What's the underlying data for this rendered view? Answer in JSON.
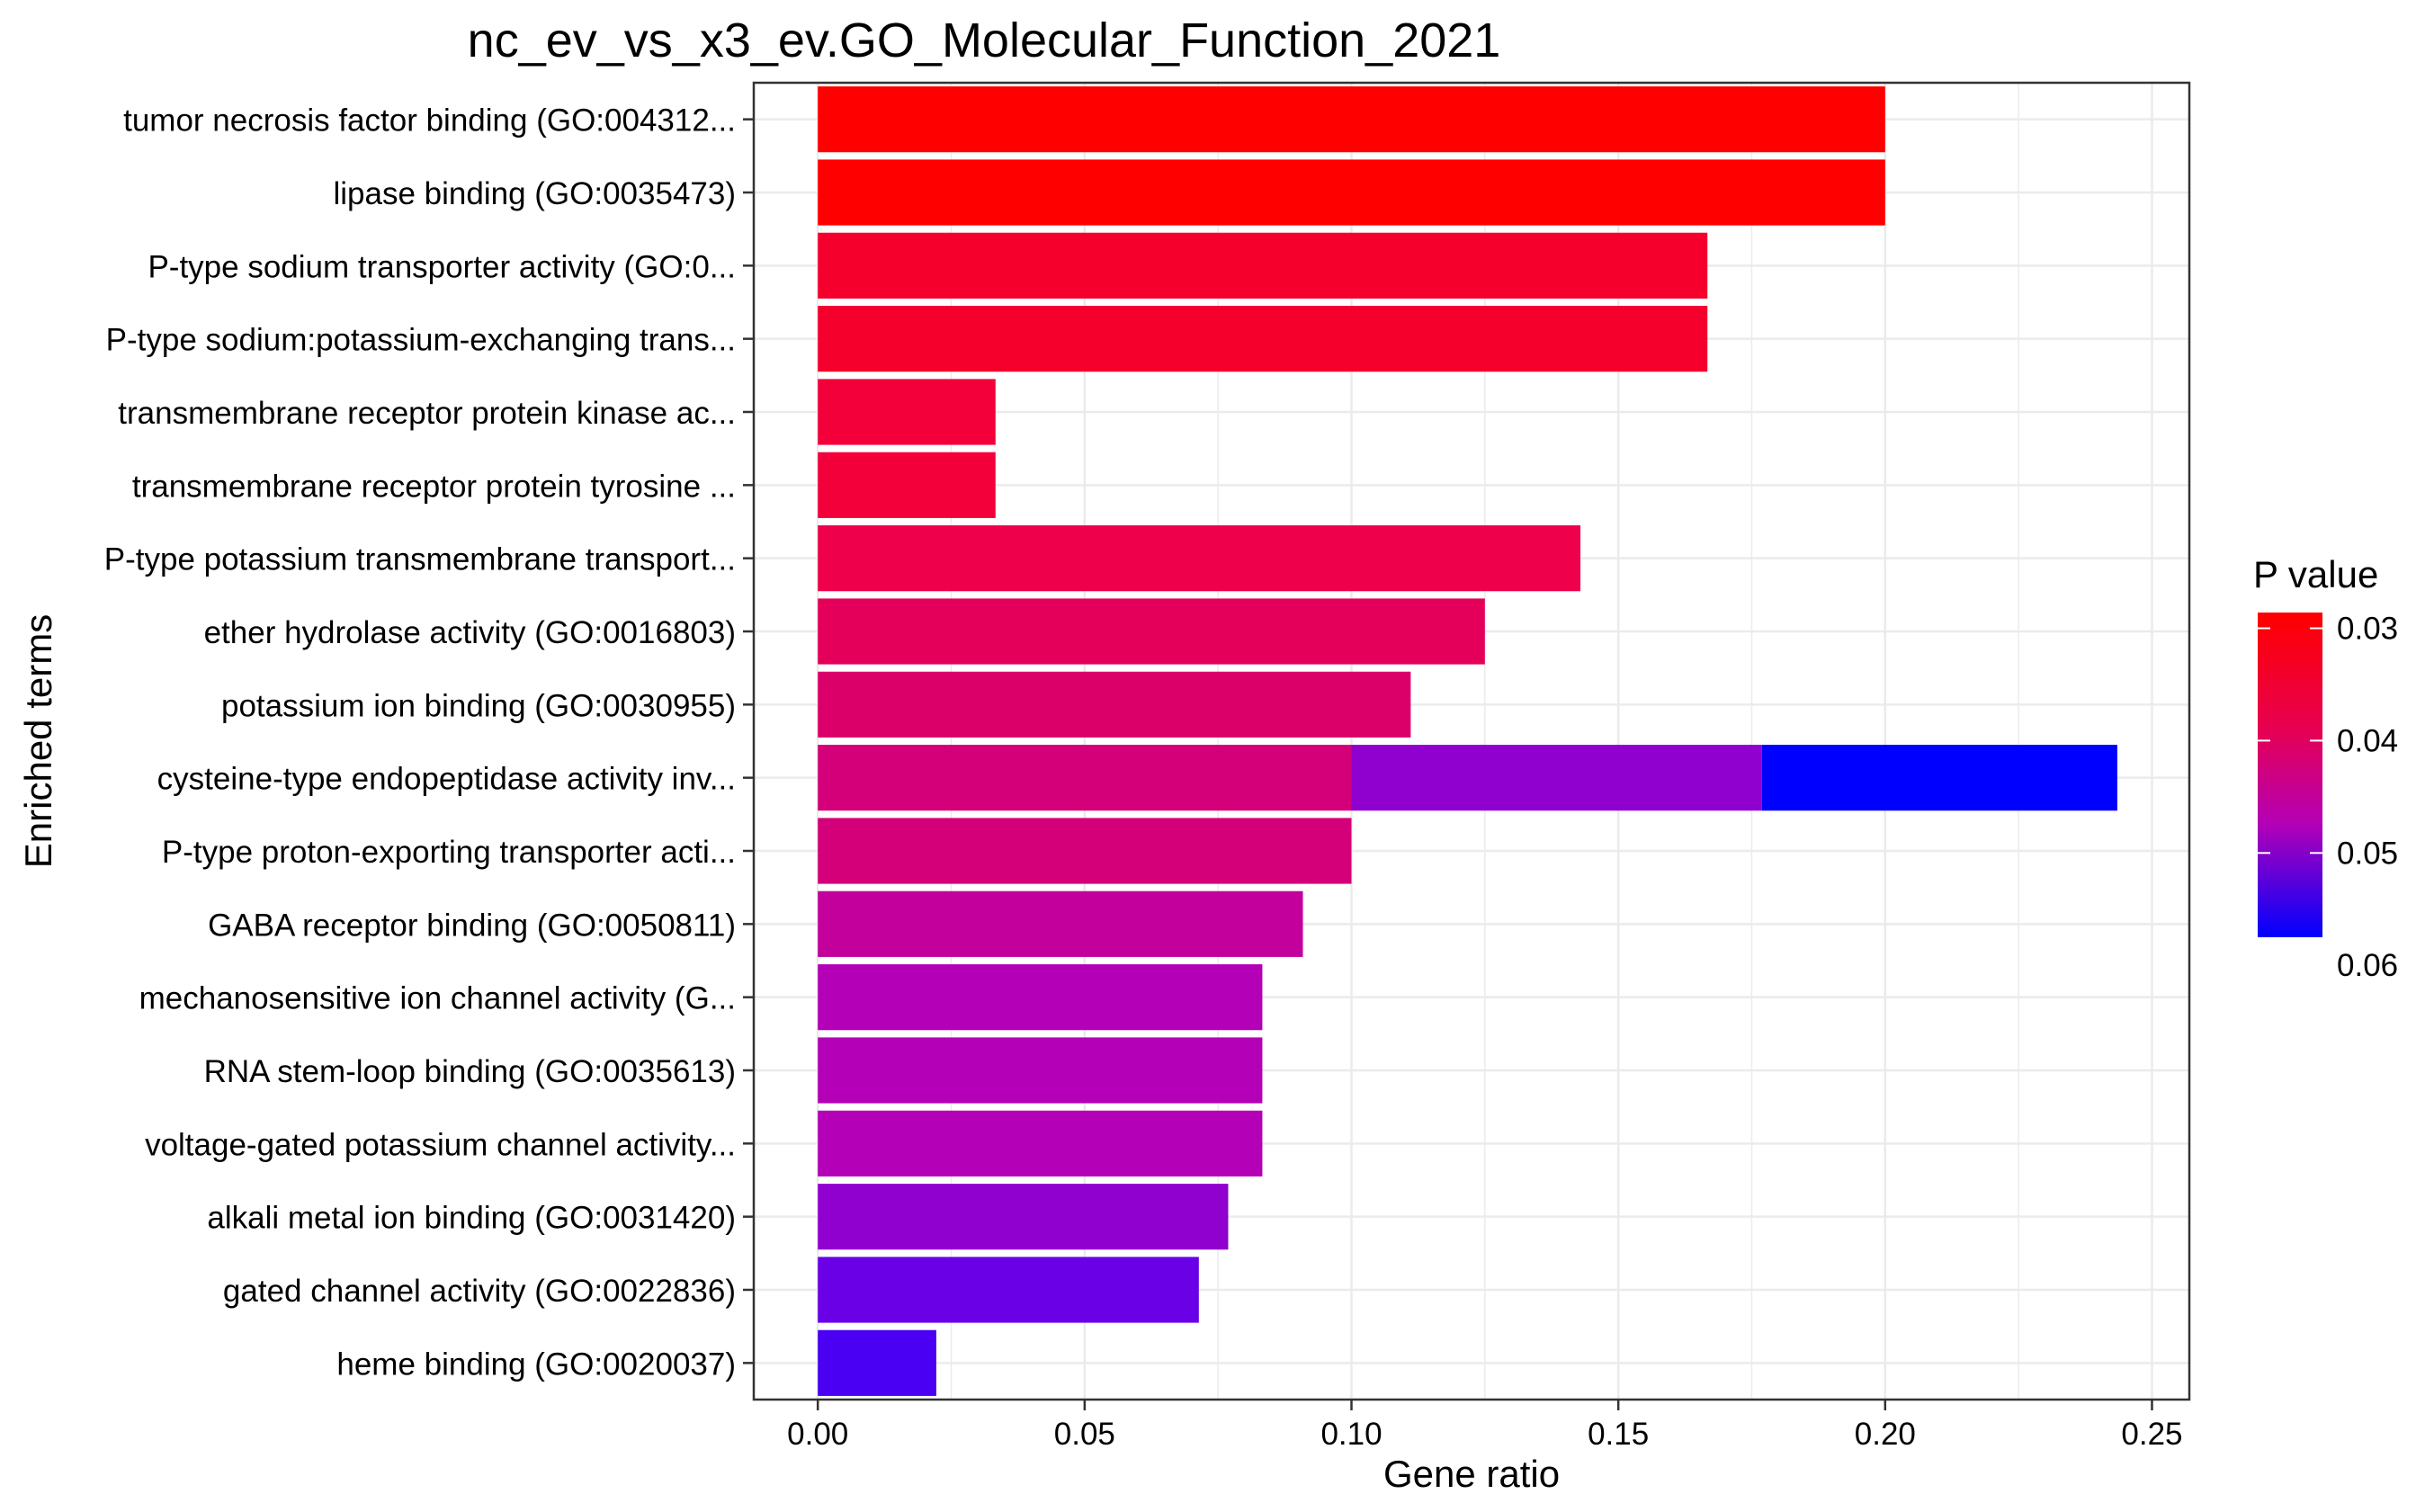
{
  "chart_data": {
    "type": "bar",
    "orientation": "horizontal",
    "title": "nc_ev_vs_x3_ev.GO_Molecular_Function_2021",
    "xlabel": "Gene ratio",
    "ylabel": "Enriched terms",
    "xlim": [
      -0.012,
      0.257
    ],
    "xticks": [
      0.0,
      0.05,
      0.1,
      0.15,
      0.2,
      0.25
    ],
    "xtick_labels": [
      "0.00",
      "0.05",
      "0.10",
      "0.15",
      "0.20",
      "0.25"
    ],
    "grid": true,
    "categories": [
      "tumor necrosis factor binding (GO:004312...",
      "lipase binding (GO:0035473)",
      "P-type sodium transporter activity (GO:0...",
      "P-type sodium:potassium-exchanging trans...",
      "transmembrane receptor protein kinase ac...",
      "transmembrane receptor protein tyrosine ...",
      "P-type potassium transmembrane transport...",
      "ether hydrolase activity (GO:0016803)",
      "potassium ion binding (GO:0030955)",
      "cysteine-type endopeptidase activity inv...",
      "P-type proton-exporting transporter acti...",
      "GABA receptor binding (GO:0050811)",
      "mechanosensitive ion channel activity (G...",
      "RNA stem-loop binding (GO:0035613)",
      "voltage-gated potassium channel activity...",
      "alkali metal ion binding (GO:0031420)",
      "gated channel activity (GO:0022836)",
      "heme binding (GO:0020037)"
    ],
    "bars": [
      {
        "term": 0,
        "start": 0,
        "end": 0.2,
        "color": "#FF0000"
      },
      {
        "term": 1,
        "start": 0,
        "end": 0.2,
        "color": "#FF0000"
      },
      {
        "term": 2,
        "start": 0,
        "end": 0.1667,
        "color": "#F5002D"
      },
      {
        "term": 3,
        "start": 0,
        "end": 0.1667,
        "color": "#F5002D"
      },
      {
        "term": 4,
        "start": 0,
        "end": 0.0333,
        "color": "#F3003A"
      },
      {
        "term": 5,
        "start": 0,
        "end": 0.0333,
        "color": "#F3003A"
      },
      {
        "term": 6,
        "start": 0,
        "end": 0.1429,
        "color": "#EE004A"
      },
      {
        "term": 7,
        "start": 0,
        "end": 0.125,
        "color": "#E4005A"
      },
      {
        "term": 8,
        "start": 0,
        "end": 0.1111,
        "color": "#DB0069"
      },
      {
        "term": 9,
        "start": 0,
        "end": 0.1,
        "color": "#D3007A"
      },
      {
        "term": 9,
        "start": 0.1,
        "end": 0.1769,
        "color": "#9000CF"
      },
      {
        "term": 9,
        "start": 0.1769,
        "end": 0.2435,
        "color": "#0000FF"
      },
      {
        "term": 10,
        "start": 0,
        "end": 0.1,
        "color": "#D3007A"
      },
      {
        "term": 11,
        "start": 0,
        "end": 0.0909,
        "color": "#C3009C"
      },
      {
        "term": 12,
        "start": 0,
        "end": 0.0833,
        "color": "#B400B6"
      },
      {
        "term": 13,
        "start": 0,
        "end": 0.0833,
        "color": "#B400B6"
      },
      {
        "term": 14,
        "start": 0,
        "end": 0.0833,
        "color": "#B400B6"
      },
      {
        "term": 15,
        "start": 0,
        "end": 0.0769,
        "color": "#9000CF"
      },
      {
        "term": 16,
        "start": 0,
        "end": 0.0714,
        "color": "#6A00E6"
      },
      {
        "term": 17,
        "start": 0,
        "end": 0.0222,
        "color": "#4A00F2"
      }
    ],
    "legend": {
      "title": "P value",
      "position": "right",
      "range": [
        0.0286,
        0.0575
      ],
      "ticks": [
        0.03,
        0.04,
        0.05,
        0.06
      ],
      "tick_labels": [
        "0.03",
        "0.04",
        "0.05",
        "0.06"
      ],
      "color_low": "#FF0000",
      "color_high": "#0000FF"
    }
  }
}
